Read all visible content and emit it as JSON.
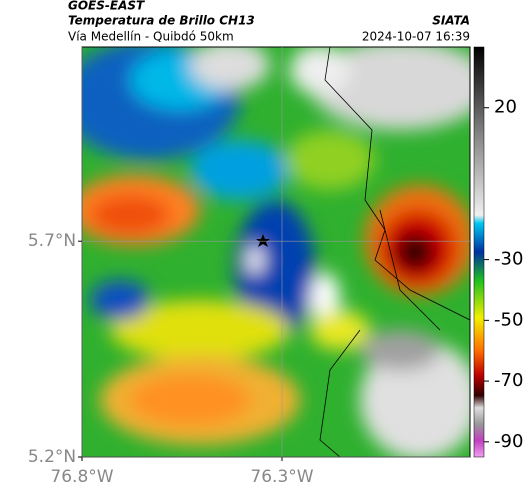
{
  "header": {
    "title": "GOES-EAST",
    "subtitle": "Temperatura de Brillo CH13",
    "source": "SIATA",
    "route": "Vía Medellín - Quibdó 50km",
    "datetime": "2024-10-07 16:39"
  },
  "map": {
    "xlim": [
      -76.8,
      -75.83
    ],
    "ylim": [
      5.2,
      6.15
    ],
    "xticks": [
      {
        "value": -76.8,
        "label": "76.8°W"
      },
      {
        "value": -76.3,
        "label": "76.3°W"
      }
    ],
    "yticks": [
      {
        "value": 5.2,
        "label": "5.2°N"
      },
      {
        "value": 5.7,
        "label": "5.7°N"
      }
    ]
  },
  "colorbar": {
    "lim": [
      -95,
      40
    ],
    "ticks": [
      20,
      -30,
      -50,
      -70,
      -90
    ]
  }
}
